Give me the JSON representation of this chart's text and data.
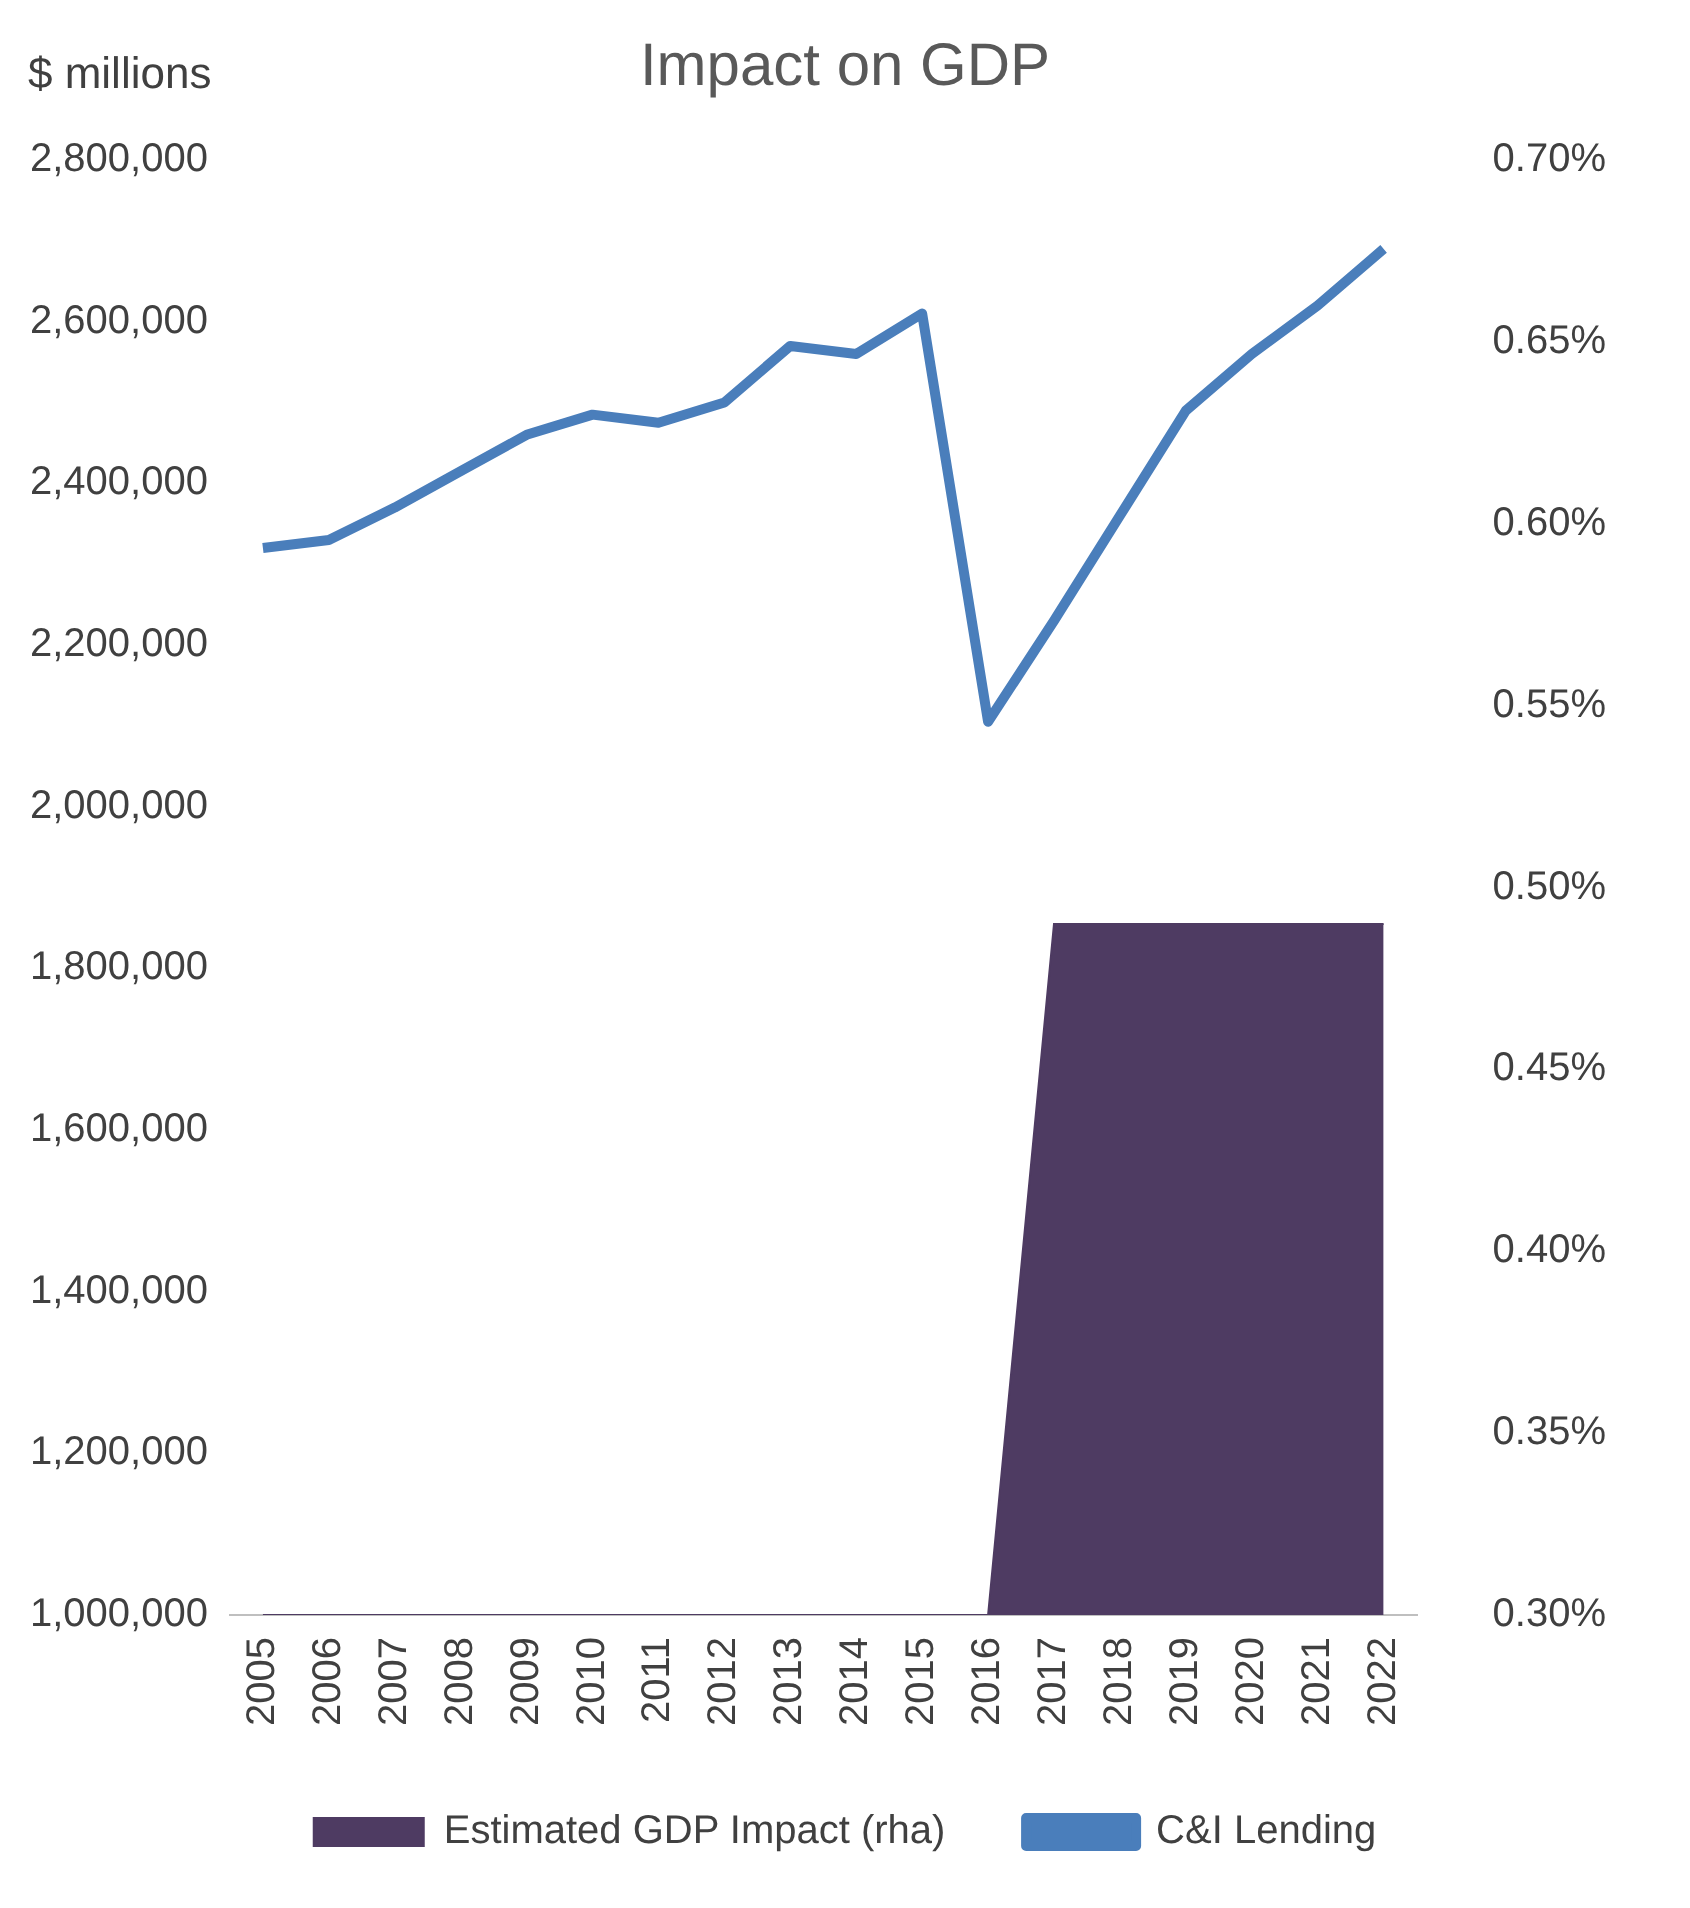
{
  "chart_data": {
    "type": "line",
    "title": "Impact on GDP",
    "ylabel": "$ millions",
    "categories": [
      "2005",
      "2006",
      "2007",
      "2008",
      "2009",
      "2010",
      "2011",
      "2012",
      "2013",
      "2014",
      "2015",
      "2016",
      "2017",
      "2018",
      "2019",
      "2020",
      "2021",
      "2022"
    ],
    "series": [
      {
        "name": "Estimated GDP Impact (rha)",
        "type": "area",
        "axis": "y2",
        "color": "#4e3b62",
        "values": [
          0.3,
          0.3,
          0.3,
          0.3,
          0.3,
          0.3,
          0.3,
          0.3,
          0.3,
          0.3,
          0.3,
          0.3,
          0.49,
          0.49,
          0.49,
          0.49,
          0.49,
          0.49
        ]
      },
      {
        "name": "C&I Lending",
        "color": "#4a7ebb",
        "values": [
          2320000,
          2330000,
          2370000,
          2415000,
          2460000,
          2485000,
          2475000,
          2500000,
          2570000,
          2560000,
          2610000,
          2105000,
          2230000,
          2360000,
          2490000,
          2560000,
          2620000,
          2690000
        ]
      }
    ],
    "ylim": [
      1000000,
      2800000
    ],
    "yticks": [
      {
        "value": 1000000,
        "label": "1,000,000"
      },
      {
        "value": 1200000,
        "label": "1,200,000"
      },
      {
        "value": 1400000,
        "label": "1,400,000"
      },
      {
        "value": 1600000,
        "label": "1,600,000"
      },
      {
        "value": 1800000,
        "label": "1,800,000"
      },
      {
        "value": 2000000,
        "label": "2,000,000"
      },
      {
        "value": 2200000,
        "label": "2,200,000"
      },
      {
        "value": 2400000,
        "label": "2,400,000"
      },
      {
        "value": 2600000,
        "label": "2,600,000"
      },
      {
        "value": 2800000,
        "label": "2,800,000"
      }
    ],
    "y2lim": [
      0.3,
      0.7
    ],
    "y2ticks": [
      {
        "value": 0.3,
        "label": "0.30%"
      },
      {
        "value": 0.35,
        "label": "0.35%"
      },
      {
        "value": 0.4,
        "label": "0.40%"
      },
      {
        "value": 0.45,
        "label": "0.45%"
      },
      {
        "value": 0.5,
        "label": "0.50%"
      },
      {
        "value": 0.55,
        "label": "0.55%"
      },
      {
        "value": 0.6,
        "label": "0.60%"
      },
      {
        "value": 0.65,
        "label": "0.65%"
      },
      {
        "value": 0.7,
        "label": "0.70%"
      }
    ],
    "grid": false,
    "legend": "bottom"
  }
}
